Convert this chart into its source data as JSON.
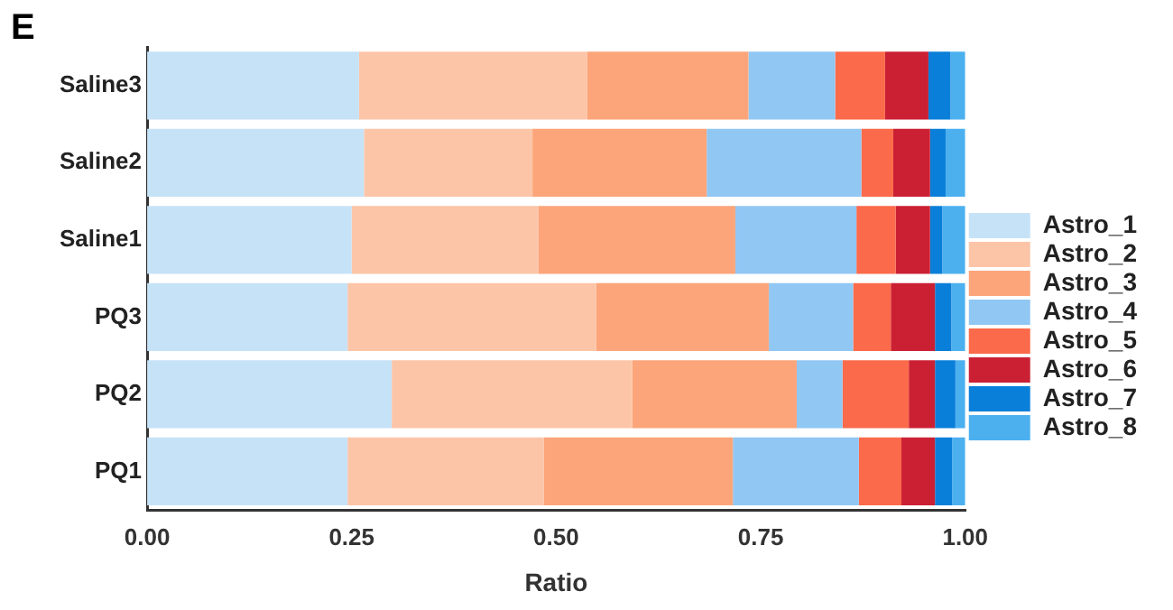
{
  "chart_data": {
    "type": "bar",
    "orientation": "horizontal",
    "stacked": true,
    "xlabel": "Ratio",
    "annotations": [
      "E"
    ],
    "categories": [
      "Saline3",
      "Saline2",
      "Saline1",
      "PQ3",
      "PQ2",
      "PQ1"
    ],
    "xlim": [
      0,
      1
    ],
    "xticks": [
      {
        "value": 0,
        "label": "0.00"
      },
      {
        "value": 0.25,
        "label": "0.25"
      },
      {
        "value": 0.5,
        "label": "0.50"
      },
      {
        "value": 0.75,
        "label": "0.75"
      },
      {
        "value": 1,
        "label": "1.00"
      }
    ],
    "grid": false,
    "legend": "right",
    "series": [
      {
        "name": "Astro_1",
        "color": "#c6e2f7",
        "values": [
          0.259,
          0.265,
          0.25,
          0.245,
          0.299,
          0.245
        ]
      },
      {
        "name": "Astro_2",
        "color": "#fcc5a8",
        "values": [
          0.279,
          0.206,
          0.228,
          0.304,
          0.294,
          0.24
        ]
      },
      {
        "name": "Astro_3",
        "color": "#fca57a",
        "values": [
          0.197,
          0.213,
          0.241,
          0.211,
          0.201,
          0.231
        ]
      },
      {
        "name": "Astro_4",
        "color": "#91c7f3",
        "values": [
          0.106,
          0.189,
          0.148,
          0.103,
          0.056,
          0.154
        ]
      },
      {
        "name": "Astro_5",
        "color": "#fb6a4a",
        "values": [
          0.061,
          0.039,
          0.048,
          0.046,
          0.081,
          0.052
        ]
      },
      {
        "name": "Astro_6",
        "color": "#cb2034",
        "values": [
          0.053,
          0.045,
          0.042,
          0.054,
          0.032,
          0.041
        ]
      },
      {
        "name": "Astro_7",
        "color": "#0a7fd9",
        "values": [
          0.027,
          0.019,
          0.015,
          0.02,
          0.025,
          0.021
        ]
      },
      {
        "name": "Astro_8",
        "color": "#4cb0ef",
        "values": [
          0.018,
          0.024,
          0.028,
          0.017,
          0.012,
          0.016
        ]
      }
    ]
  }
}
